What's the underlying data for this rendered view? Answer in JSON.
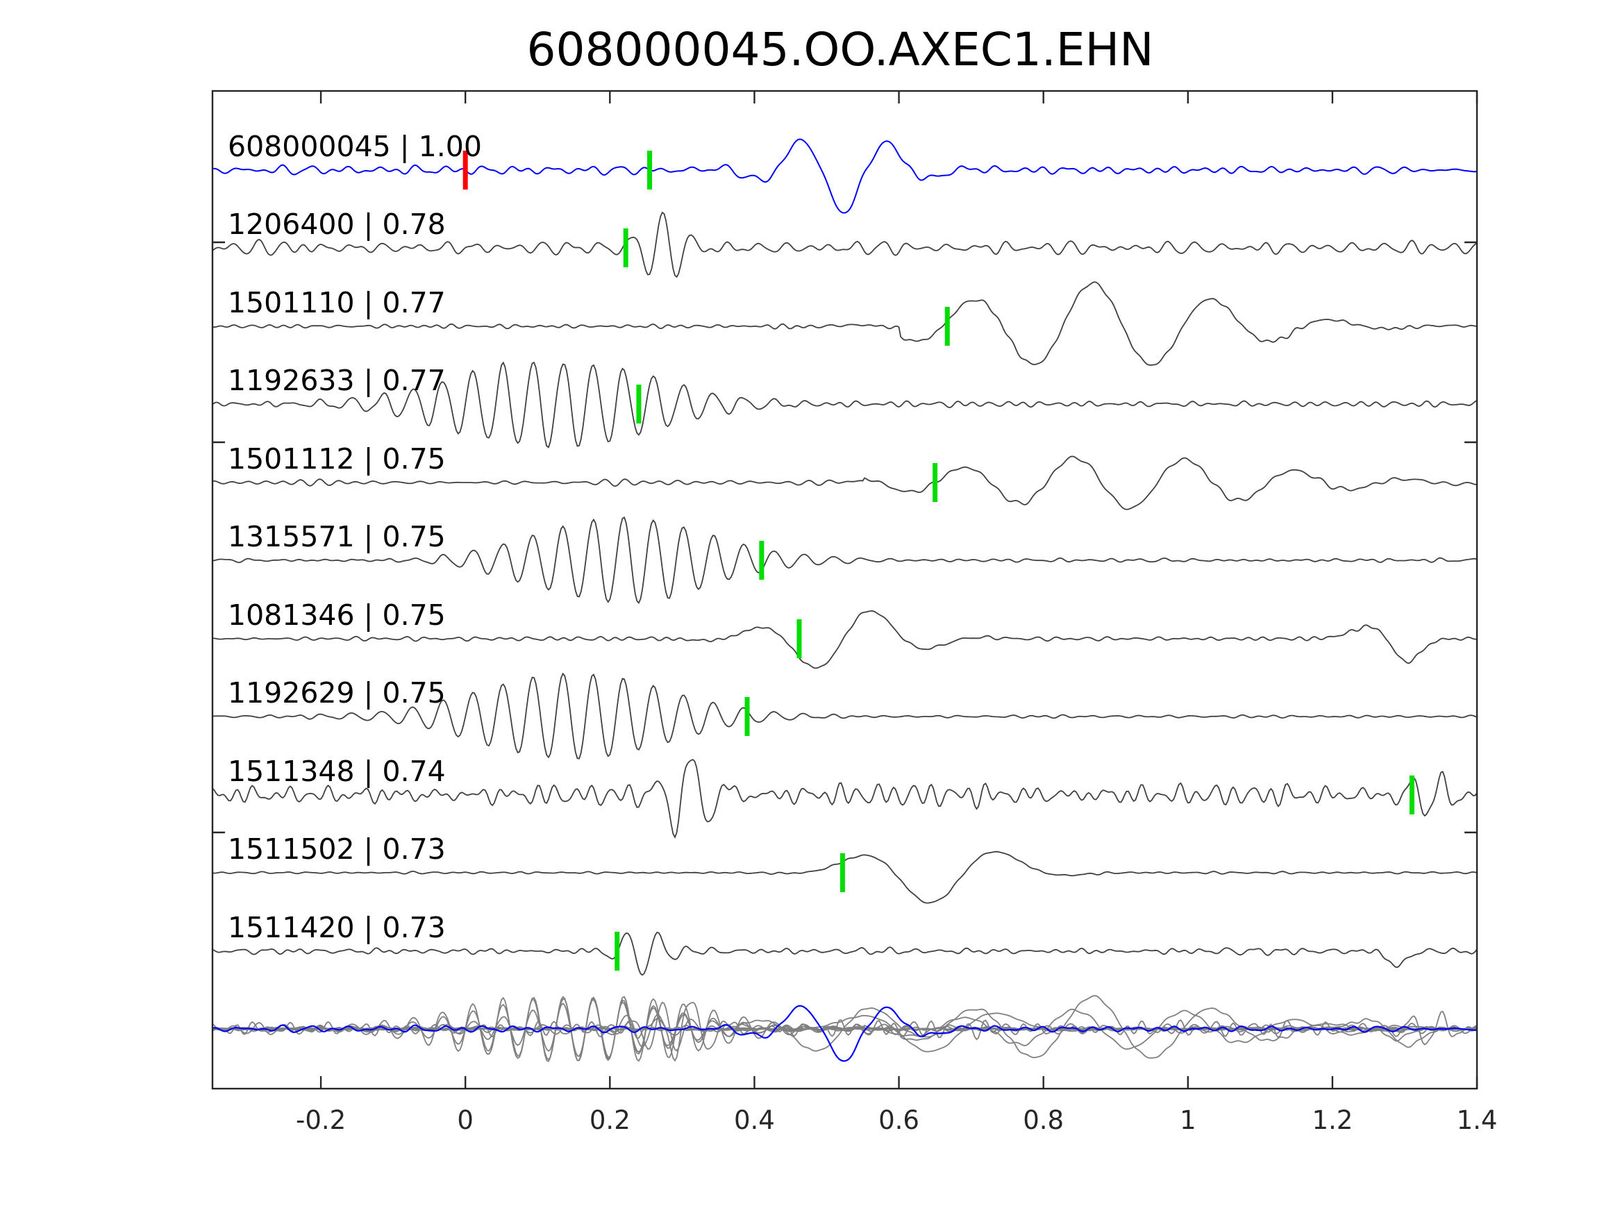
{
  "chart_data": {
    "type": "line",
    "title": "608000045.OO.AXEC1.EHN",
    "xlabel": "",
    "ylabel": "",
    "xlim": [
      -0.35,
      1.4
    ],
    "x_ticks": [
      "-0.2",
      "0",
      "0.2",
      "0.4",
      "0.6",
      "0.8",
      "1",
      "1.2",
      "1.4"
    ],
    "x_tick_values": [
      -0.2,
      0,
      0.2,
      0.4,
      0.6,
      0.8,
      1.0,
      1.2,
      1.4
    ],
    "grid": false,
    "template": {
      "label": "608000045 | 1.00",
      "id": "608000045",
      "cc": "1.00",
      "color": "#0000ff",
      "red_pick": 0.0,
      "green_pick": 0.255
    },
    "series": [
      {
        "label": "1206400 | 0.78",
        "id": "1206400",
        "cc": "0.78",
        "color": "#404040",
        "pick": 0.222
      },
      {
        "label": "1501110 | 0.77",
        "id": "1501110",
        "cc": "0.77",
        "color": "#404040",
        "pick": 0.667
      },
      {
        "label": "1192633 | 0.77",
        "id": "1192633",
        "cc": "0.77",
        "color": "#404040",
        "pick": 0.24
      },
      {
        "label": "1501112 | 0.75",
        "id": "1501112",
        "cc": "0.75",
        "color": "#404040",
        "pick": 0.65
      },
      {
        "label": "1315571 | 0.75",
        "id": "1315571",
        "cc": "0.75",
        "color": "#404040",
        "pick": 0.41
      },
      {
        "label": "1081346 | 0.75",
        "id": "1081346",
        "cc": "0.75",
        "color": "#404040",
        "pick": 0.462
      },
      {
        "label": "1192629 | 0.75",
        "id": "1192629",
        "cc": "0.75",
        "color": "#404040",
        "pick": 0.39
      },
      {
        "label": "1511348 | 0.74",
        "id": "1511348",
        "cc": "0.74",
        "color": "#404040",
        "pick": 1.31
      },
      {
        "label": "1511502 | 0.73",
        "id": "1511502",
        "cc": "0.73",
        "color": "#404040",
        "pick": 0.522
      },
      {
        "label": "1511420 | 0.73",
        "id": "1511420",
        "cc": "0.73",
        "color": "#404040",
        "pick": 0.21
      }
    ],
    "stack_colors": {
      "template": "#0000ff",
      "others": "#808080"
    },
    "pick_colors": {
      "template": "#ff0000",
      "arrival": "#00dd00"
    }
  }
}
